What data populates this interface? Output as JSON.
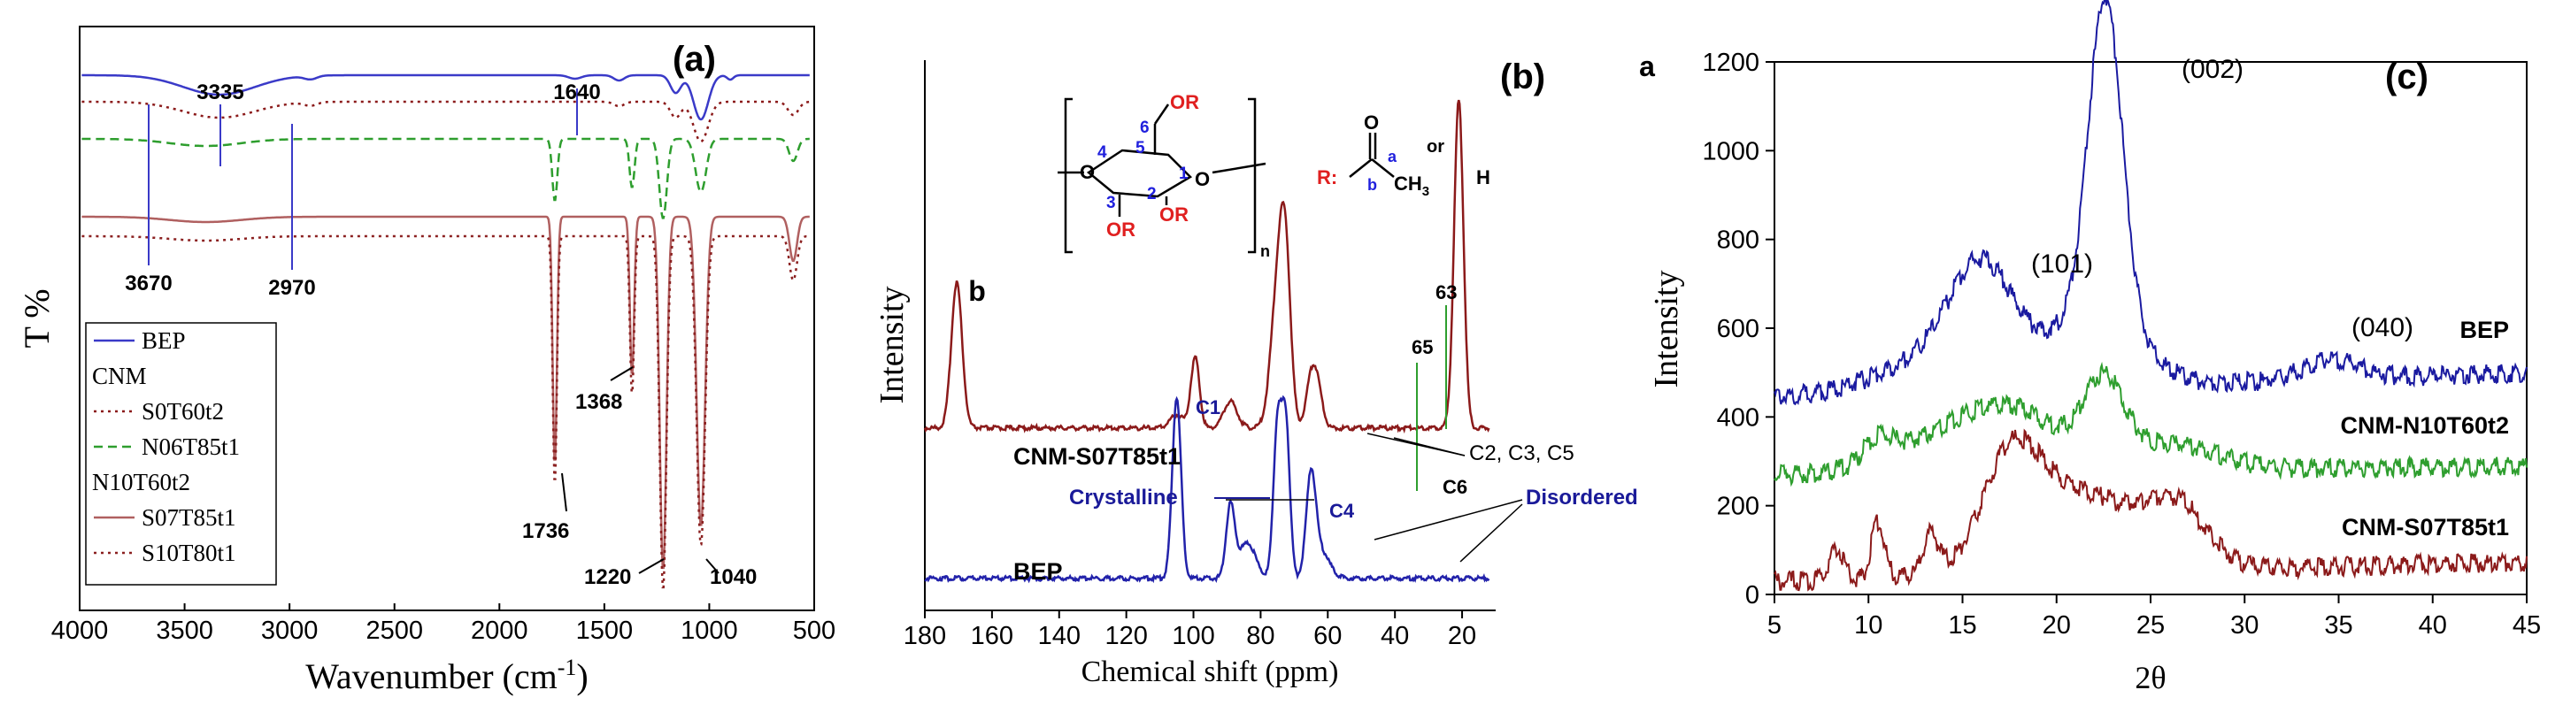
{
  "chart_data": [
    {
      "type": "line",
      "panel": "(a)",
      "xlabel": "Wavenumber (cm",
      "xlabel_sup": "-1",
      "xlabel_close": ")",
      "ylabel": "T %",
      "xlim": [
        4000,
        500
      ],
      "xticks": [
        4000,
        3500,
        3000,
        2500,
        2000,
        1500,
        1000,
        500
      ],
      "legend": {
        "position": "bottom-left",
        "entries": [
          {
            "label": "BEP",
            "color": "#3a3ac8",
            "dash": "solid"
          },
          {
            "label": "CNM",
            "color": "none",
            "dash": "none"
          },
          {
            "label": "S0T60t2",
            "color": "#8b1a1a",
            "dash": "dot"
          },
          {
            "label": "N06T85t1",
            "color": "#2e9e2e",
            "dash": "dash"
          },
          {
            "label": "N10T60t2",
            "color": "none",
            "dash": "none"
          },
          {
            "label": "S07T85t1",
            "color": "#b06060",
            "dash": "solid"
          },
          {
            "label": "S10T80t1",
            "color": "#8b2020",
            "dash": "dot"
          }
        ]
      },
      "series": [
        {
          "name": "BEP",
          "color": "#3a3ac8",
          "dash": "solid",
          "offset": 0,
          "peaks": [
            [
              3335,
              22,
              170
            ],
            [
              2900,
              4,
              30
            ],
            [
              1640,
              4,
              30
            ],
            [
              1430,
              6,
              25
            ],
            [
              1160,
              20,
              25
            ],
            [
              1040,
              50,
              35
            ],
            [
              900,
              5,
              15
            ]
          ]
        },
        {
          "name": "S0T60t2",
          "color": "#8b1a1a",
          "dash": "dot",
          "offset": 30,
          "peaks": [
            [
              3335,
              18,
              170
            ],
            [
              2900,
              4,
              30
            ],
            [
              1430,
              5,
              25
            ],
            [
              1160,
              18,
              25
            ],
            [
              1040,
              45,
              35
            ],
            [
              600,
              15,
              25
            ]
          ]
        },
        {
          "name": "N06T85t1",
          "color": "#2e9e2e",
          "dash": "dash",
          "offset": 72,
          "peaks": [
            [
              3400,
              8,
              170
            ],
            [
              1736,
              70,
              12
            ],
            [
              1368,
              55,
              12
            ],
            [
              1220,
              90,
              18
            ],
            [
              1040,
              60,
              25
            ],
            [
              600,
              25,
              20
            ]
          ]
        },
        {
          "name": "S07T85t1",
          "color": "#b06060",
          "dash": "solid",
          "offset": 160,
          "peaks": [
            [
              3400,
              6,
              170
            ],
            [
              1736,
              280,
              10
            ],
            [
              1368,
              180,
              10
            ],
            [
              1220,
              400,
              16
            ],
            [
              1040,
              350,
              20
            ],
            [
              600,
              50,
              18
            ]
          ]
        },
        {
          "name": "S10T80t1",
          "color": "#8b2020",
          "dash": "dot",
          "offset": 182,
          "peaks": [
            [
              3400,
              5,
              170
            ],
            [
              1736,
              280,
              10
            ],
            [
              1368,
              180,
              10
            ],
            [
              1220,
              400,
              16
            ],
            [
              1040,
              350,
              20
            ],
            [
              600,
              50,
              18
            ]
          ]
        }
      ],
      "annotations": [
        "3335",
        "1640",
        "3670",
        "2970",
        "1368",
        "1736",
        "1220",
        "1040"
      ]
    },
    {
      "type": "line",
      "panel": "(b)",
      "xlabel": "Chemical shift (ppm)",
      "ylabel": "Intensity",
      "xlim": [
        180,
        10
      ],
      "xticks": [
        180,
        160,
        140,
        120,
        100,
        80,
        60,
        40,
        20
      ],
      "series": [
        {
          "name": "CNM-S07T85t1",
          "color": "#8b1a1a",
          "peaks": [
            [
              170.5,
              165,
              1.6
            ],
            [
              105,
              15,
              2
            ],
            [
              99.5,
              80,
              1.3
            ],
            [
              89,
              30,
              2
            ],
            [
              74.5,
              175,
              2.2
            ],
            [
              72.5,
              120,
              1.5
            ],
            [
              65,
              50,
              1.5
            ],
            [
              63,
              40,
              1.5
            ],
            [
              21,
              370,
              1.4
            ]
          ]
        },
        {
          "name": "BEP",
          "color": "#2222aa",
          "peaks": [
            [
              105,
              205,
              1.3
            ],
            [
              89,
              80,
              1.3
            ],
            [
              84,
              40,
              2.5
            ],
            [
              75,
              170,
              1.2
            ],
            [
              72.5,
              175,
              1.2
            ],
            [
              65,
              110,
              1.4
            ],
            [
              62,
              30,
              2.5
            ]
          ]
        }
      ],
      "labels": {
        "a": "a",
        "b": "b",
        "structure_n": "n",
        "R": "R:",
        "or": "or",
        "H": "H",
        "OR": "OR",
        "CH": "CH",
        "CH_sub": "3",
        "ring_a": "a",
        "ring_b": "b",
        "O": "O",
        "ring_numbers": [
          "1",
          "2",
          "3",
          "4",
          "5",
          "6"
        ]
      },
      "annotations": [
        "CNM-S07T85t1",
        "BEP",
        "C1",
        "C4",
        "C6",
        "65",
        "63",
        "C2, C3, C5",
        "Crystalline",
        "Disordered"
      ]
    },
    {
      "type": "line",
      "panel": "(c)",
      "xlabel": "2θ",
      "ylabel": "Intensity",
      "xlim": [
        5,
        45
      ],
      "ylim": [
        0,
        1200
      ],
      "xticks": [
        5,
        10,
        15,
        20,
        25,
        30,
        35,
        40,
        45
      ],
      "yticks": [
        0,
        200,
        400,
        600,
        800,
        1000,
        1200
      ],
      "series": [
        {
          "name": "BEP",
          "color": "#1a1aa0",
          "base": 455,
          "peaks": [
            [
              16,
              200,
              1.6
            ],
            [
              15,
              100,
              3.5
            ],
            [
              22.6,
              720,
              0.9
            ],
            [
              22.2,
              150,
              2.2
            ],
            [
              34.6,
              45,
              1.5
            ]
          ],
          "tail": 510
        },
        {
          "name": "CNM-N10T60t2",
          "color": "#2e9e2e",
          "base": 280,
          "peaks": [
            [
              10.5,
              50,
              0.7
            ],
            [
              13,
              60,
              2.5
            ],
            [
              17.5,
              140,
              2.5
            ],
            [
              22.5,
              180,
              1.1
            ],
            [
              26,
              60,
              2.5
            ]
          ],
          "tail": 300
        },
        {
          "name": "CNM-S07T85t1",
          "color": "#8b1a1a",
          "base": 40,
          "peaks": [
            [
              8.3,
              70,
              0.4
            ],
            [
              10.5,
              130,
              0.35
            ],
            [
              13.3,
              90,
              0.4
            ],
            [
              17.5,
              170,
              1.4
            ],
            [
              19,
              130,
              2.5
            ],
            [
              23,
              120,
              3
            ],
            [
              26.5,
              100,
              1.5
            ]
          ],
          "tail": 85
        }
      ],
      "annotations": [
        "(101)",
        "(002)",
        "(040)",
        "BEP",
        "CNM-N10T60t2",
        "CNM-S07T85t1"
      ]
    }
  ]
}
